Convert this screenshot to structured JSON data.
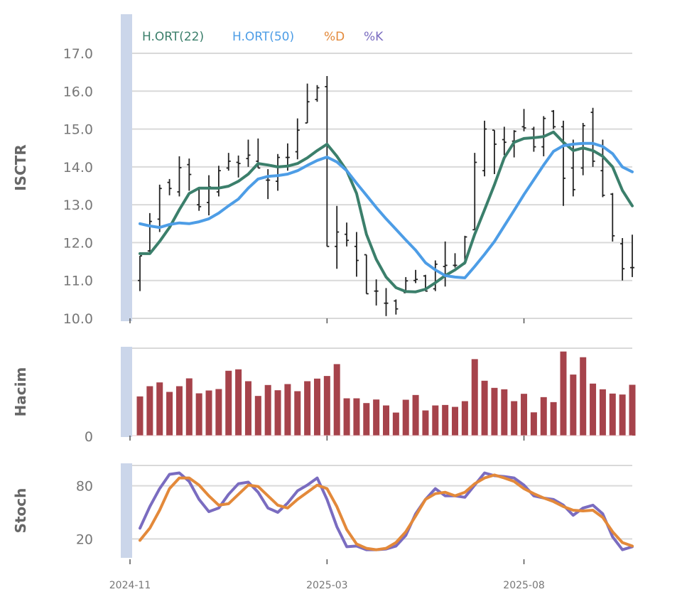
{
  "colors": {
    "ma22": "#3b7f6b",
    "ma50": "#4d9de6",
    "d": "#e3893a",
    "k": "#7a6cc0",
    "volume": "#a6434b",
    "ohlc": "#222222",
    "band": "#cbd6ea",
    "grid": "#d9d9d9"
  },
  "legend": [
    {
      "key": "ma22",
      "label": "H.ORT(22)"
    },
    {
      "key": "ma50",
      "label": "H.ORT(50)"
    },
    {
      "key": "d",
      "label": "%D"
    },
    {
      "key": "k",
      "label": "%K"
    }
  ],
  "x_ticks": [
    {
      "label": "2024-11",
      "index": -1
    },
    {
      "label": "2025-03",
      "index": 19
    },
    {
      "label": "2025-08",
      "index": 39
    }
  ],
  "chart_data": [
    {
      "type": "ohlc",
      "ylabel": "ISCTR",
      "ylim": [
        10,
        17
      ],
      "yticks": [
        "10.0",
        "11.0",
        "12.0",
        "13.0",
        "14.0",
        "15.0",
        "16.0",
        "17.0"
      ],
      "ohlc": [
        [
          11.0,
          11.65,
          10.72,
          11.65
        ],
        [
          11.78,
          12.78,
          11.72,
          12.56
        ],
        [
          12.62,
          13.53,
          12.28,
          13.43
        ],
        [
          13.59,
          13.68,
          13.25,
          13.43
        ],
        [
          13.34,
          14.28,
          13.22,
          13.98
        ],
        [
          14.06,
          14.22,
          13.37,
          13.8
        ],
        [
          13.0,
          13.43,
          12.84,
          12.95
        ],
        [
          13.06,
          13.78,
          12.72,
          13.47
        ],
        [
          13.34,
          14.03,
          13.22,
          13.9
        ],
        [
          13.97,
          14.37,
          13.9,
          14.15
        ],
        [
          14.12,
          14.3,
          13.72,
          14.09
        ],
        [
          14.22,
          14.72,
          14.0,
          14.31
        ],
        [
          14.15,
          14.75,
          13.97,
          13.97
        ],
        [
          13.65,
          13.94,
          13.15,
          13.65
        ],
        [
          13.62,
          14.34,
          13.37,
          14.25
        ],
        [
          14.25,
          14.62,
          13.9,
          14.25
        ],
        [
          14.4,
          15.28,
          14.2,
          14.97
        ],
        [
          15.16,
          16.2,
          15.16,
          15.72
        ],
        [
          15.78,
          16.16,
          15.72,
          16.09
        ],
        [
          16.12,
          16.4,
          11.9,
          11.9
        ],
        [
          11.9,
          12.97,
          11.31,
          12.28
        ],
        [
          12.22,
          12.53,
          11.9,
          12.06
        ],
        [
          11.9,
          12.28,
          11.1,
          11.53
        ],
        [
          11.68,
          11.68,
          10.65,
          10.65
        ],
        [
          10.72,
          11.03,
          10.34,
          10.72
        ],
        [
          10.4,
          10.8,
          10.06,
          10.4
        ],
        [
          10.46,
          10.5,
          10.1,
          10.25
        ],
        [
          10.68,
          11.09,
          10.68,
          10.99
        ],
        [
          11.0,
          11.28,
          10.93,
          11.03
        ],
        [
          11.12,
          11.15,
          10.72,
          10.72
        ],
        [
          10.78,
          11.53,
          10.72,
          11.43
        ],
        [
          11.37,
          12.03,
          10.84,
          11.4
        ],
        [
          11.4,
          11.72,
          11.34,
          11.4
        ],
        [
          11.43,
          12.18,
          11.43,
          12.15
        ],
        [
          12.34,
          14.37,
          12.34,
          14.12
        ],
        [
          13.9,
          15.22,
          13.75,
          15.0
        ],
        [
          14.97,
          14.97,
          13.81,
          14.6
        ],
        [
          14.72,
          15.06,
          14.31,
          14.65
        ],
        [
          14.68,
          14.97,
          14.25,
          14.94
        ],
        [
          15.06,
          15.53,
          14.94,
          15.03
        ],
        [
          15.0,
          15.06,
          14.4,
          14.53
        ],
        [
          14.53,
          15.34,
          14.28,
          15.28
        ],
        [
          15.47,
          15.5,
          15.0,
          15.06
        ],
        [
          15.06,
          15.22,
          12.97,
          13.7
        ],
        [
          13.97,
          14.72,
          13.22,
          13.4
        ],
        [
          13.97,
          15.16,
          13.78,
          15.09
        ],
        [
          15.44,
          15.56,
          14.0,
          14.15
        ],
        [
          13.9,
          14.72,
          13.2,
          13.25
        ],
        [
          13.28,
          13.31,
          12.03,
          12.18
        ],
        [
          11.97,
          12.12,
          11.0,
          11.31
        ],
        [
          11.34,
          12.21,
          11.09,
          11.34
        ]
      ],
      "series": [
        {
          "name": "H.ORT(22)",
          "key": "ma22",
          "values": [
            11.71,
            11.71,
            12.03,
            12.4,
            12.87,
            13.3,
            13.44,
            13.44,
            13.44,
            13.49,
            13.62,
            13.81,
            14.09,
            14.05,
            14.0,
            14.02,
            14.09,
            14.24,
            14.43,
            14.6,
            14.28,
            13.9,
            13.3,
            12.22,
            11.56,
            11.09,
            10.81,
            10.71,
            10.7,
            10.77,
            10.94,
            11.13,
            11.28,
            11.47,
            12.22,
            12.87,
            13.53,
            14.24,
            14.65,
            14.75,
            14.77,
            14.8,
            14.92,
            14.65,
            14.43,
            14.5,
            14.43,
            14.28,
            14.0,
            13.38,
            12.97
          ]
        },
        {
          "name": "H.ORT(50)",
          "key": "ma50",
          "values": [
            12.5,
            12.44,
            12.4,
            12.48,
            12.52,
            12.5,
            12.55,
            12.63,
            12.78,
            12.97,
            13.15,
            13.44,
            13.68,
            13.75,
            13.77,
            13.81,
            13.9,
            14.04,
            14.17,
            14.26,
            14.13,
            13.9,
            13.57,
            13.25,
            12.93,
            12.63,
            12.35,
            12.07,
            11.8,
            11.47,
            11.28,
            11.13,
            11.09,
            11.07,
            11.37,
            11.69,
            12.03,
            12.44,
            12.85,
            13.27,
            13.66,
            14.05,
            14.41,
            14.56,
            14.6,
            14.62,
            14.62,
            14.54,
            14.35,
            14.0,
            13.87
          ]
        }
      ]
    },
    {
      "type": "bar",
      "ylabel": "Hacim",
      "ylim": [
        0,
        368
      ],
      "yticks": [
        "0"
      ],
      "values": [
        165,
        208,
        224,
        184,
        208,
        241,
        178,
        190,
        196,
        273,
        279,
        229,
        167,
        213,
        191,
        217,
        187,
        229,
        240,
        251,
        301,
        157,
        157,
        137,
        152,
        127,
        97,
        151,
        171,
        106,
        127,
        129,
        121,
        145,
        322,
        231,
        201,
        195,
        145,
        176,
        98,
        162,
        141,
        354,
        257,
        330,
        219,
        195,
        177,
        173,
        214
      ]
    },
    {
      "type": "line",
      "ylabel": "Stoch",
      "ylim": [
        -3,
        103
      ],
      "yticks": [
        "20",
        "80"
      ],
      "series": [
        {
          "name": "%K",
          "key": "k",
          "values": [
            32.1,
            56.5,
            76.8,
            93,
            94.6,
            84.9,
            64.6,
            50.8,
            54.9,
            70.3,
            82.4,
            84.1,
            72.7,
            54.9,
            50,
            60.5,
            74.3,
            80.8,
            88.9,
            64.6,
            33.8,
            11.1,
            11.9,
            7.8,
            7.8,
            8.6,
            11.9,
            24,
            48.4,
            64.6,
            76.8,
            68.6,
            68.6,
            67,
            80.8,
            94.6,
            91.4,
            90.5,
            88.9,
            80.8,
            68.6,
            66.2,
            64.6,
            58.1,
            46.7,
            54.9,
            58.1,
            48.4,
            22.4,
            7.8,
            11.1
          ]
        },
        {
          "name": "%D",
          "key": "d",
          "values": [
            18.4,
            32.1,
            52.4,
            76.8,
            88.9,
            88.9,
            80.8,
            68.6,
            58.1,
            59.7,
            70.3,
            80.8,
            79.2,
            68.6,
            58.1,
            54.9,
            64.6,
            72.7,
            80.8,
            76.8,
            56.5,
            30.5,
            14.3,
            9.4,
            7.8,
            9.4,
            15.9,
            28.1,
            45.9,
            64.6,
            71.1,
            72.7,
            68.6,
            72.7,
            82.4,
            88.9,
            92.2,
            88.9,
            84.9,
            76.8,
            71.1,
            66.2,
            62.2,
            56.5,
            52.4,
            51.6,
            52.4,
            44.3,
            28.1,
            15.9,
            11.9
          ]
        }
      ]
    }
  ]
}
